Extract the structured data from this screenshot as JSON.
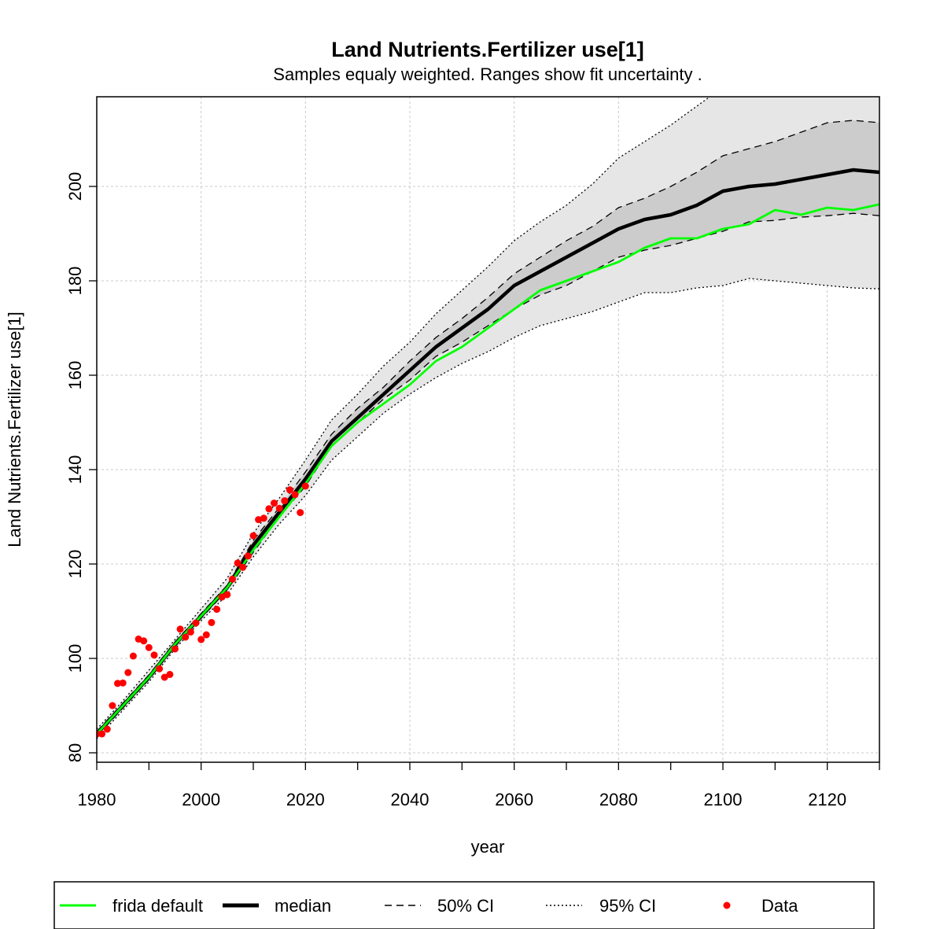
{
  "chart_data": {
    "type": "line",
    "title": "Land Nutrients.Fertilizer use[1]",
    "subtitle": "Samples equaly weighted. Ranges show  fit uncertainty .",
    "xlabel": "year",
    "ylabel": "Land Nutrients.Fertilizer use[1]",
    "xlim": [
      1980,
      2130
    ],
    "ylim": [
      78,
      219
    ],
    "xticks": [
      1980,
      2000,
      2020,
      2040,
      2060,
      2080,
      2100,
      2120
    ],
    "yticks": [
      80,
      100,
      120,
      140,
      160,
      180,
      200
    ],
    "grid": true,
    "legend_position": "bottom",
    "legend": [
      "frida default",
      "median",
      "50% CI",
      "95% CI",
      "Data"
    ],
    "colors": {
      "frida_default": "#00ff00",
      "median": "#000000",
      "ci50_fill": "#cccccc",
      "ci95_fill": "#e6e6e6",
      "data": "#ff0000"
    },
    "x": [
      1980,
      1985,
      1990,
      1995,
      2000,
      2005,
      2010,
      2015,
      2020,
      2025,
      2030,
      2035,
      2040,
      2045,
      2050,
      2055,
      2060,
      2065,
      2070,
      2075,
      2080,
      2085,
      2090,
      2095,
      2100,
      2105,
      2110,
      2115,
      2120,
      2125,
      2130
    ],
    "median": [
      84,
      90,
      96,
      103,
      109,
      115,
      124,
      131,
      138,
      146,
      151,
      156,
      161,
      166,
      170,
      174,
      179,
      182,
      185,
      188,
      191,
      193,
      194,
      196,
      199,
      200,
      200.5,
      201.5,
      202.5,
      203.5,
      203
    ],
    "frida_default": [
      84,
      90,
      96,
      103,
      109,
      115,
      123,
      130,
      137,
      145,
      150,
      154,
      158,
      163,
      166,
      170,
      174,
      178,
      180,
      182,
      184,
      187,
      189,
      189,
      191,
      192,
      195,
      194,
      195.5,
      195,
      196.2
    ],
    "ci50_lower": [
      83.5,
      89.5,
      95.5,
      102.5,
      108.5,
      114.5,
      122.5,
      130,
      136.5,
      145,
      150,
      155,
      159,
      164,
      167,
      170.5,
      174,
      177,
      179,
      182,
      185,
      186.5,
      187.5,
      189,
      190.5,
      192.5,
      192.8,
      193.5,
      193.8,
      194.3,
      193.8
    ],
    "ci50_upper": [
      84.5,
      90.5,
      96.5,
      103.5,
      109.5,
      115.5,
      125,
      132,
      139.5,
      147.5,
      153,
      157.5,
      163,
      168,
      172,
      176.5,
      181.5,
      185,
      188.5,
      191.5,
      195.5,
      197.5,
      200,
      203,
      206.5,
      208,
      209.5,
      211.5,
      213.5,
      214,
      213.5
    ],
    "ci95_lower": [
      83,
      89,
      95,
      102,
      108,
      113.5,
      121.5,
      128.5,
      134.5,
      142,
      147,
      152,
      156,
      159.5,
      162.5,
      165,
      168,
      170.5,
      172,
      173.5,
      175.5,
      177.5,
      177.5,
      178.5,
      179,
      180.5,
      180,
      179.5,
      179,
      178.5,
      178.3
    ],
    "ci95_upper": [
      85,
      91,
      97.5,
      104,
      110.5,
      117,
      126.5,
      134,
      142,
      150.5,
      156,
      162,
      167,
      173,
      178,
      183,
      188.5,
      192.5,
      196,
      200.5,
      206,
      209.5,
      213,
      217,
      221,
      225,
      229,
      232,
      235,
      238,
      240
    ],
    "data_points": {
      "x": [
        1980,
        1981,
        1982,
        1983,
        1984,
        1985,
        1986,
        1987,
        1988,
        1989,
        1990,
        1991,
        1992,
        1993,
        1994,
        1995,
        1996,
        1997,
        1998,
        1999,
        2000,
        2001,
        2002,
        2003,
        2004,
        2005,
        2006,
        2007,
        2008,
        2009,
        2010,
        2011,
        2012,
        2013,
        2014,
        2015,
        2016,
        2017,
        2018,
        2019,
        2020
      ],
      "y": [
        84,
        84,
        85,
        90,
        94.7,
        94.8,
        97,
        100.5,
        104.1,
        103.7,
        102.3,
        100.7,
        97.8,
        96,
        96.6,
        102,
        106.2,
        104.5,
        105.6,
        107.5,
        104,
        105,
        107.6,
        110.4,
        113,
        113.5,
        116.8,
        120.2,
        119.3,
        121.7,
        126,
        129.4,
        129.7,
        131.7,
        132.9,
        131.8,
        133.4,
        135.7,
        134.7,
        130.9,
        136.5
      ]
    }
  }
}
